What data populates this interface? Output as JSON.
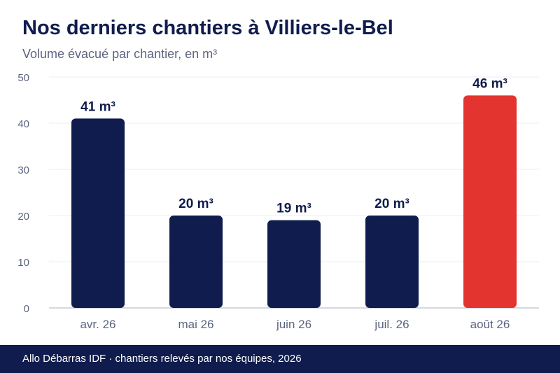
{
  "header": {
    "title": "Nos derniers chantiers à Villiers-le-Bel",
    "subtitle": "Volume évacué par chantier, en m³"
  },
  "footer": {
    "text": "Allo Débarras IDF · chantiers relevés par nos équipes, 2026"
  },
  "colors": {
    "bar": "#0f1c4d",
    "highlight": "#e3342f",
    "grid": "#ebecf0",
    "axis": "#c9cbd6",
    "tick": "#5c6480",
    "label": "#0f1c4d"
  },
  "chart_data": {
    "type": "bar",
    "title": "Nos derniers chantiers à Villiers-le-Bel",
    "subtitle": "Volume évacué par chantier, en m³",
    "categories": [
      "avr. 26",
      "mai 26",
      "juin 26",
      "juil. 26",
      "août 26"
    ],
    "values": [
      41,
      20,
      19,
      20,
      46
    ],
    "data_labels": [
      "41 m³",
      "20 m³",
      "19 m³",
      "20 m³",
      "46 m³"
    ],
    "highlight_index": 4,
    "ylim": [
      0,
      50
    ],
    "yticks": [
      0,
      10,
      20,
      30,
      40,
      50
    ],
    "grid": true,
    "legend": "none"
  }
}
